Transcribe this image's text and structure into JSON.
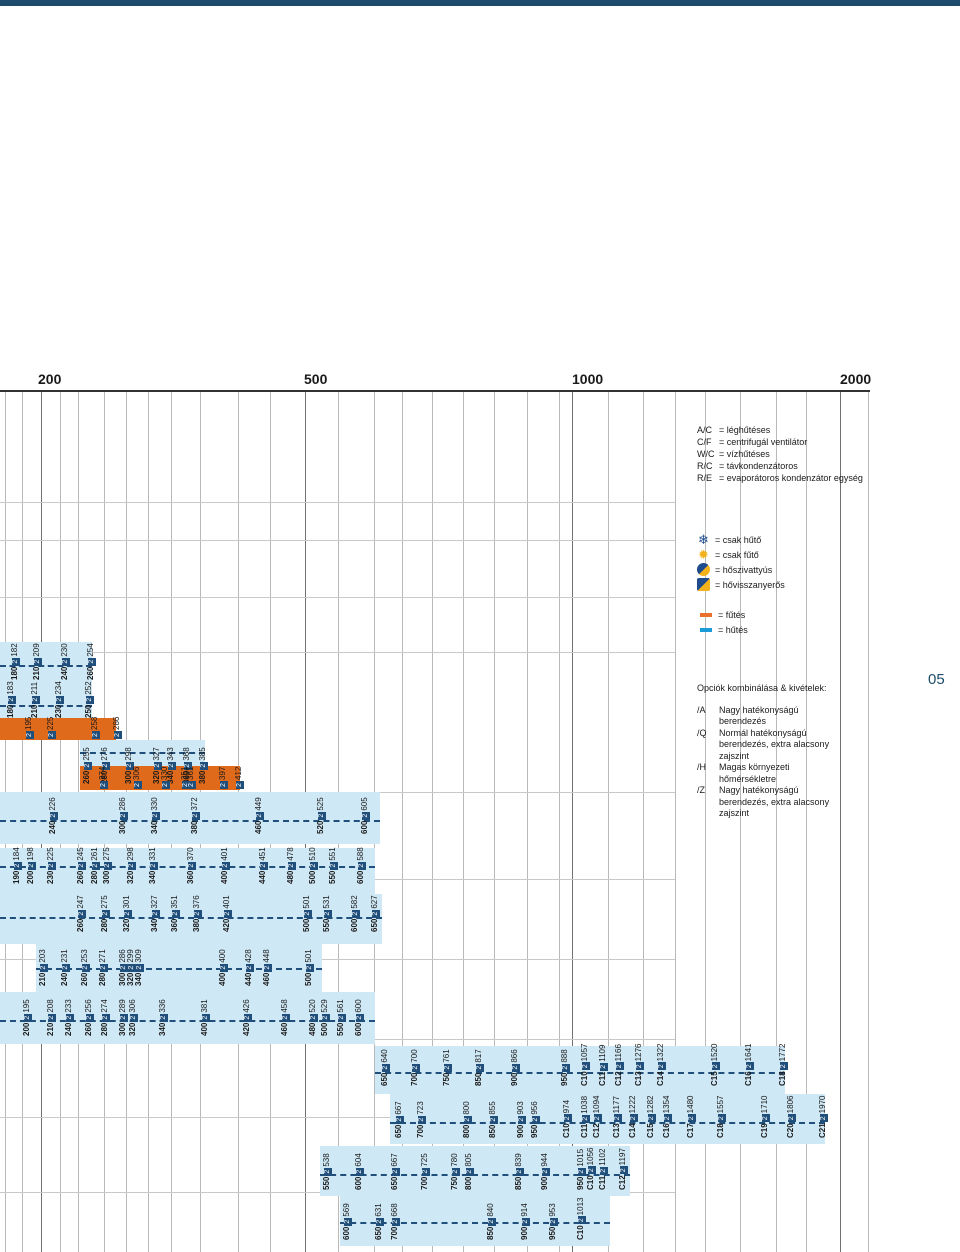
{
  "scale": {
    "ticks": [
      "200",
      "500",
      "1000",
      "2000"
    ]
  },
  "unit_types": [
    {
      "code": "A/C",
      "desc": "= léghűtéses"
    },
    {
      "code": "C/F",
      "desc": "= centrifugál ventilátor"
    },
    {
      "code": "W/C",
      "desc": "= vízhűtéses"
    },
    {
      "code": "R/C",
      "desc": "= távkondenzátoros"
    },
    {
      "code": "R/E",
      "desc": "= evaporátoros kondenzátor egység"
    }
  ],
  "function_icons": [
    {
      "icon": "snowflake-icon",
      "desc": "= csak hűtő"
    },
    {
      "icon": "sun-icon",
      "desc": "= csak fűtő"
    },
    {
      "icon": "heat-pump-icon",
      "desc": "= hőszivattyús"
    },
    {
      "icon": "heat-recovery-icon",
      "desc": "= hővisszanyerős"
    }
  ],
  "mode_swatches": [
    {
      "color": "#e8702a",
      "desc": "= fűtés"
    },
    {
      "color": "#1a9ad6",
      "desc": "= hűtés"
    }
  ],
  "options": {
    "title": "Opciók kombinálása & kivételek:",
    "items": [
      {
        "code": "/A",
        "desc": "Nagy hatékonyságú berendezés"
      },
      {
        "code": "/Q",
        "desc": "Normál hatékonyságú berendezés, extra alacsony zajszint"
      },
      {
        "code": "/H",
        "desc": "Magas környezeti hőmérsékletre"
      },
      {
        "code": "/Z",
        "desc": "Nagy hatékonyságú berendezés, extra alacsony zajszint"
      }
    ]
  },
  "page_number": "05",
  "sep_mark": "2",
  "rows": {
    "r1": [
      "180|182",
      "210|209",
      "240|230",
      "260|254"
    ],
    "r2": [
      "180|183",
      "210|211",
      "230|234",
      "250|252"
    ],
    "r3": [
      "195",
      "225",
      "258",
      "286"
    ],
    "r4": [
      "260|255",
      "280|276",
      "300|298",
      "320|327",
      "340|343",
      "360|368",
      "380|385"
    ],
    "r5": [
      "274",
      "306",
      "330",
      "351",
      "361",
      "397",
      "412"
    ],
    "r6": [
      "240|226",
      "300|286",
      "340|330",
      "380|372",
      "460|449",
      "520|525",
      "600|605"
    ],
    "r7": [
      "190|184",
      "200|198",
      "230|225",
      "260|245",
      "280|261",
      "300|275",
      "320|298",
      "340|331",
      "360|370",
      "400|401",
      "440|451",
      "480|478",
      "500|510",
      "550|551",
      "600|588"
    ],
    "r8": [
      "260|247",
      "280|275",
      "320|301",
      "340|327",
      "360|351",
      "380|376",
      "420|401",
      "500|501",
      "550|531",
      "600|582",
      "650|627"
    ],
    "r9": [
      "210|203",
      "240|231",
      "260|253",
      "280|271",
      "300|286",
      "320|299",
      "340|309",
      "400|400",
      "440|428",
      "460|448",
      "500|501"
    ],
    "r10": [
      "200|195",
      "210|208",
      "240|233",
      "260|256",
      "280|274",
      "300|289",
      "320|306",
      "340|336",
      "400|381",
      "420|426",
      "460|458",
      "480|520",
      "500|529",
      "550|561",
      "600|600"
    ],
    "r11": [
      "650|640",
      "700|700",
      "750|761",
      "850|817",
      "900|866",
      "950|888",
      "C10|1057",
      "C11|1109",
      "C12|1166",
      "C13|1276",
      "C14|1322",
      "C15|1520",
      "C16|1641",
      "C18|1772"
    ],
    "r12": [
      "650|667",
      "700|723",
      "800|800",
      "850|855",
      "900|903",
      "950|956",
      "C10|974",
      "C11|1038",
      "C12|1094",
      "C13|1177",
      "C14|1222",
      "C15|1282",
      "C16|1354",
      "C17|1480",
      "C18|1557",
      "C19|1710",
      "C20|1806",
      "C21|1970"
    ],
    "r13": [
      "550|538",
      "600|604",
      "650|667",
      "700|725",
      "750|780",
      "800|805",
      "850|839",
      "900|944",
      "950|1015",
      "C10|1056",
      "C11|1102",
      "C12|1197"
    ],
    "r14": [
      "600|569",
      "650|631",
      "700|668",
      "850|840",
      "900|914",
      "950|953",
      "C10|1013"
    ]
  }
}
